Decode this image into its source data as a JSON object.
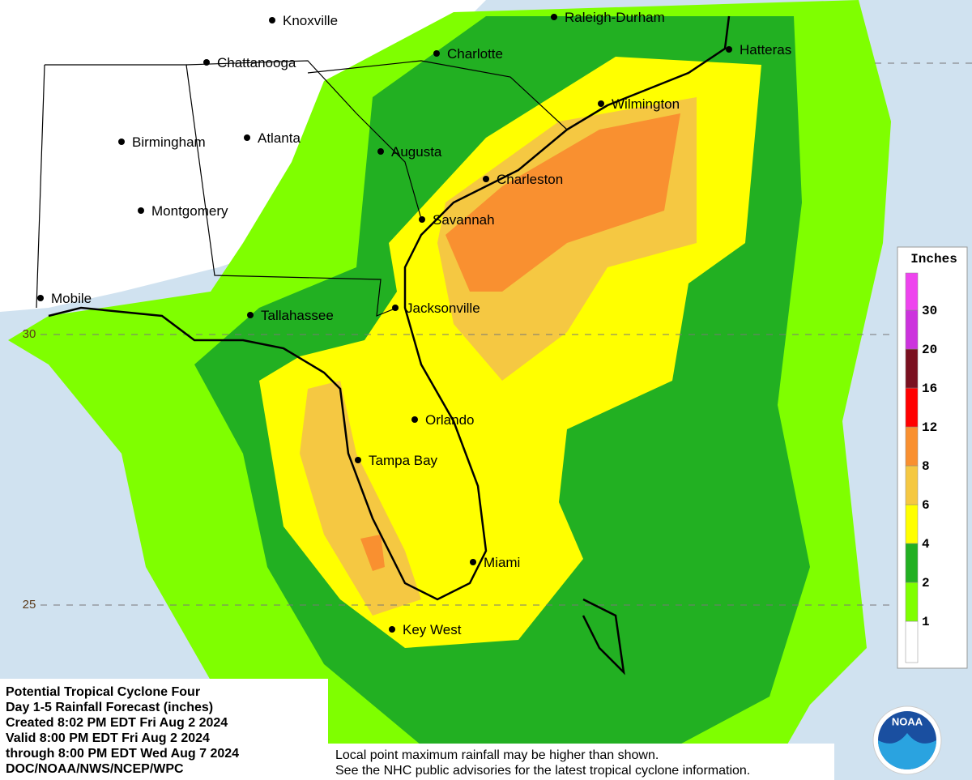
{
  "cities": [
    "Knoxville",
    "Raleigh-Durham",
    "Chattanooga",
    "Charlotte",
    "Hatteras",
    "Wilmington",
    "Birmingham",
    "Atlanta",
    "Augusta",
    "Charleston",
    "Montgomery",
    "Savannah",
    "Mobile",
    "Jacksonville",
    "Tallahassee",
    "Orlando",
    "Tampa Bay",
    "Miami",
    "Key West"
  ],
  "latitude_labels": [
    30,
    25
  ],
  "legend": {
    "title": "Inches",
    "ticks": [
      1,
      2,
      4,
      6,
      8,
      12,
      16,
      20,
      30
    ]
  },
  "info_box": {
    "lines": [
      "Potential Tropical Cyclone Four",
      "Day 1-5 Rainfall Forecast (inches)",
      "Created 8:02 PM EDT Fri Aug 2 2024",
      "Valid 8:00 PM EDT Fri Aug 2 2024",
      "through 8:00 PM EDT Wed Aug 7 2024",
      "DOC/NOAA/NWS/NCEP/WPC"
    ]
  },
  "disclaimer": {
    "lines": [
      "Local point maximum rainfall may be higher than shown.",
      "See the NHC public advisories for the latest tropical cyclone information."
    ]
  },
  "logo": "NOAA"
}
